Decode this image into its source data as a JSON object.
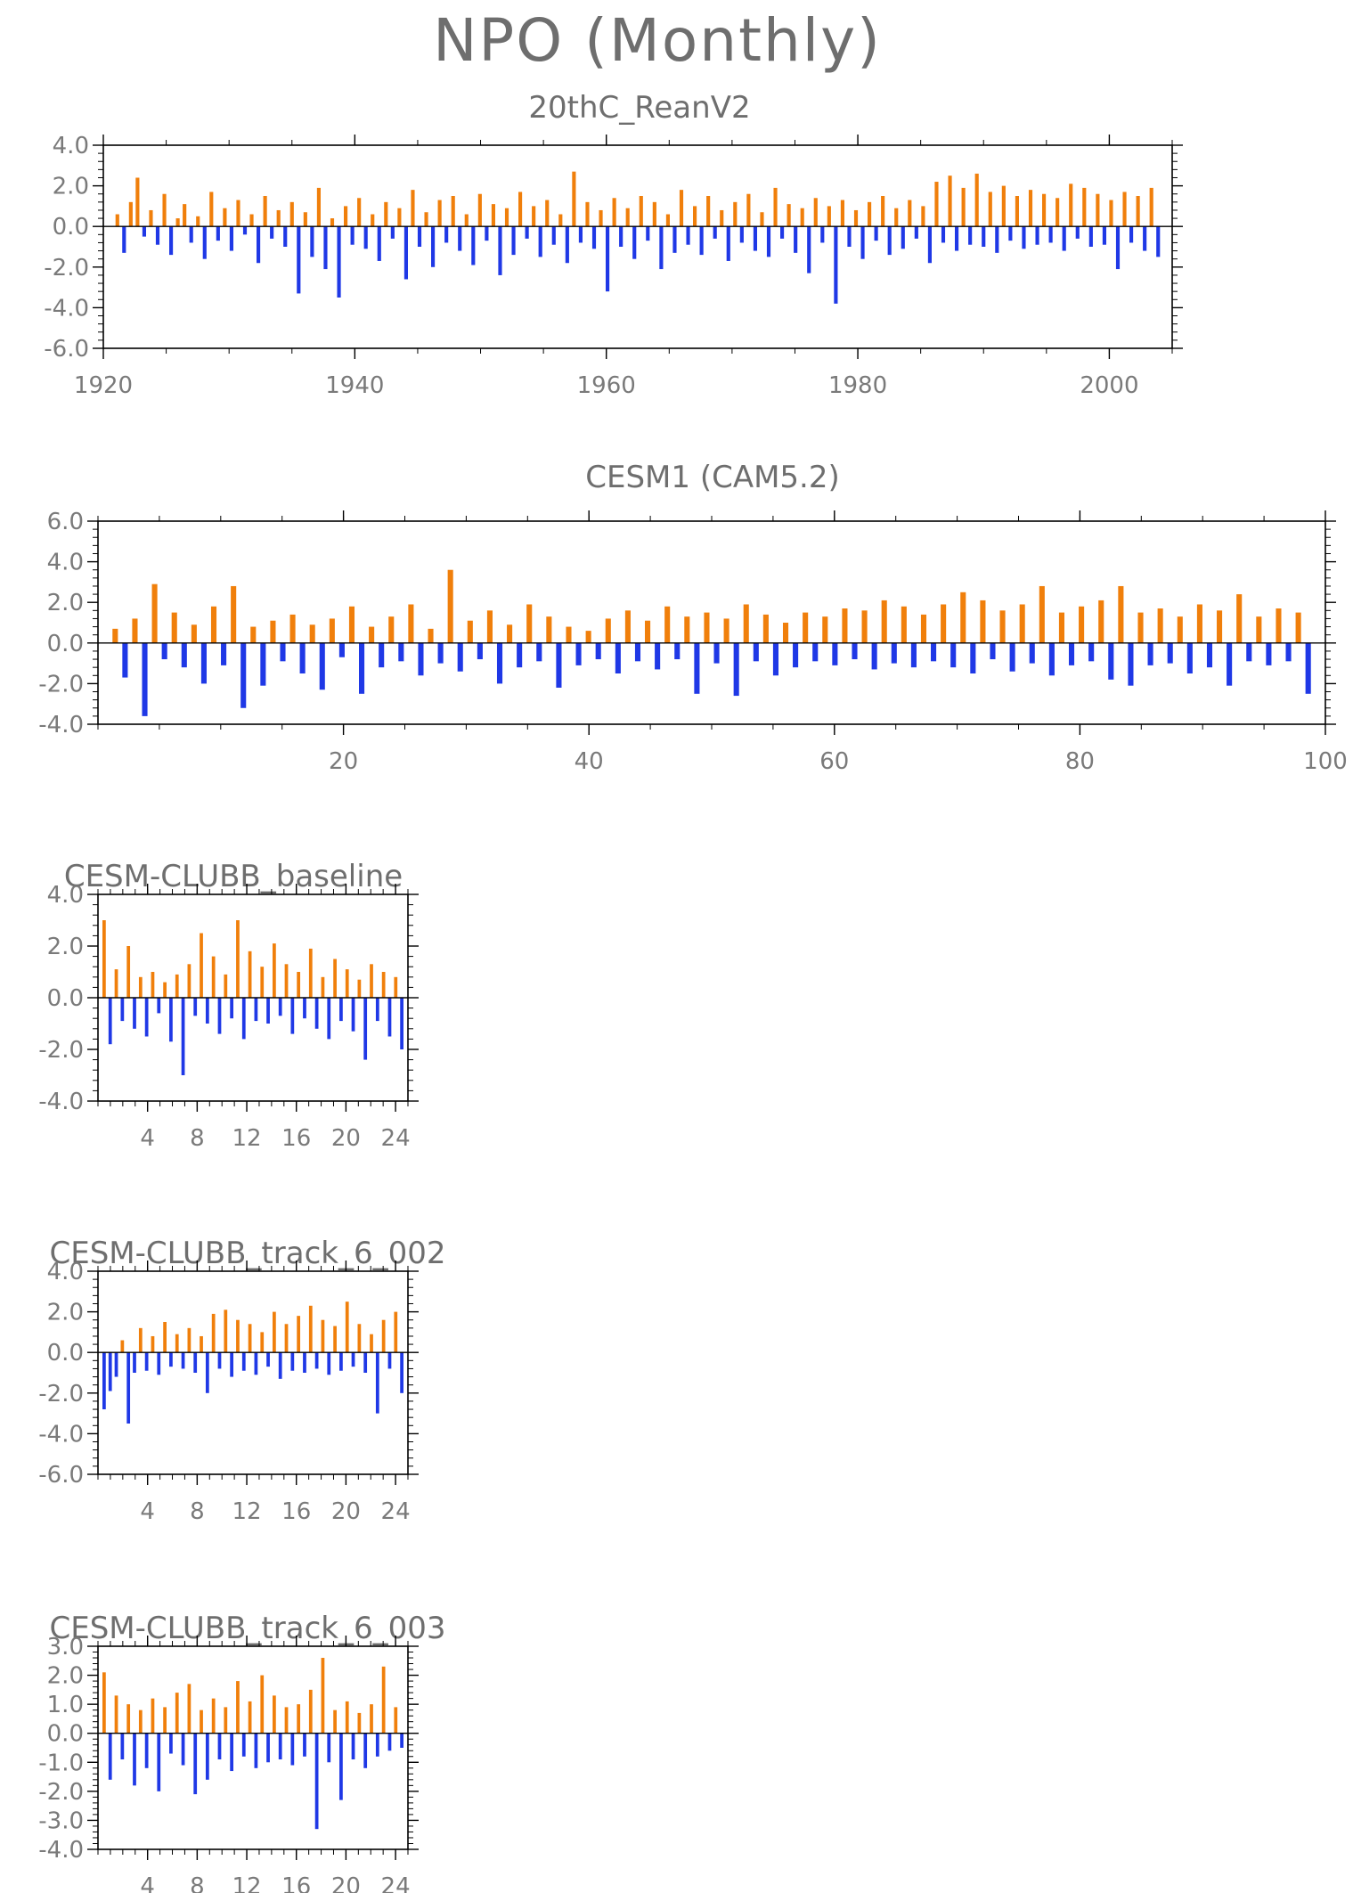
{
  "figure": {
    "title": "NPO (Monthly)"
  },
  "colors": {
    "positive": "#f07f0b",
    "negative": "#1f38e6",
    "spike": "#c8c8c8",
    "axis": "#000000",
    "title": "#6e6e6e",
    "tick_label": "#7a7a7a"
  },
  "chart_data": [
    {
      "type": "bar",
      "title": "20thC_ReanV2",
      "xlabel": "",
      "ylabel": "",
      "xlim": [
        1920,
        2005
      ],
      "ylim": [
        -6.0,
        4.0
      ],
      "xticks": [
        1920,
        1940,
        1960,
        1980,
        2000
      ],
      "xtick_labels": [
        "1920",
        "1940",
        "1960",
        "1980",
        "2000"
      ],
      "yticks": [
        -6.0,
        -4.0,
        -2.0,
        0.0,
        2.0,
        4.0
      ],
      "ytick_labels": [
        "-6.0",
        "-4.0",
        "-2.0",
        "0.0",
        "2.0",
        "4.0"
      ],
      "positive_color": "#f07f0b",
      "negative_color": "#1f38e6",
      "series": [
        {
          "values": [
            0.6,
            -1.3,
            1.2,
            2.4,
            -0.5,
            0.8,
            -0.9,
            1.6,
            -1.4,
            0.4,
            1.1,
            -0.8,
            0.5,
            -1.6,
            1.7,
            -0.7,
            0.9,
            -1.2,
            1.3,
            -0.4,
            0.6,
            -1.8,
            1.5,
            -0.6,
            0.8,
            -1.0,
            1.2,
            -3.3,
            0.7,
            -1.5,
            1.9,
            -2.1,
            0.4,
            -3.5,
            1.0,
            -0.9,
            1.4,
            -1.1,
            0.6,
            -1.7,
            1.2,
            -0.6,
            0.9,
            -2.6,
            1.8,
            -1.0,
            0.7,
            -2.0,
            1.3,
            -0.8,
            1.5,
            -1.2,
            0.6,
            -1.9,
            1.6,
            -0.7,
            1.1,
            -2.4,
            0.9,
            -1.4,
            1.7,
            -0.6,
            1.0,
            -1.5,
            1.3,
            -0.9,
            0.6,
            -1.8,
            2.7,
            -0.8,
            1.2,
            -1.1,
            0.8,
            -3.2,
            1.4,
            -1.0,
            0.9,
            -1.6,
            1.5,
            -0.7,
            1.2,
            -2.1,
            0.6,
            -1.3,
            1.8,
            -0.9,
            1.0,
            -1.4,
            1.5,
            -0.6,
            0.8,
            -1.7,
            1.2,
            -0.8,
            1.6,
            -1.2,
            0.7,
            -1.5,
            1.9,
            -0.6,
            1.1,
            -1.3,
            0.9,
            -2.3,
            1.4,
            -0.8,
            1.0,
            -3.8,
            1.3,
            -1.0,
            0.8,
            -1.6,
            1.2,
            -0.7,
            1.5,
            -1.4,
            0.9,
            -1.1,
            1.3,
            -0.6,
            1.0,
            -1.8,
            2.2,
            -0.8,
            2.5,
            -1.2,
            1.9,
            -0.9,
            2.6,
            -1.0,
            1.7,
            -1.3,
            2.0,
            -0.7,
            1.5,
            -1.1,
            1.8,
            -0.9,
            1.6,
            -0.8,
            1.4,
            -1.2,
            2.1,
            -0.6,
            1.9,
            -1.0,
            1.6,
            -0.9,
            1.3,
            -2.1,
            1.7,
            -0.8,
            1.5,
            -1.2,
            1.9,
            -1.5
          ]
        }
      ]
    },
    {
      "type": "bar",
      "title": "CESM1 (CAM5.2)",
      "xlabel": "",
      "ylabel": "",
      "xlim": [
        0,
        100
      ],
      "ylim": [
        -4.0,
        6.0
      ],
      "xticks": [
        20,
        40,
        60,
        80,
        100
      ],
      "xtick_labels": [
        "20",
        "40",
        "60",
        "80",
        "100"
      ],
      "yticks": [
        -4.0,
        -2.0,
        0.0,
        2.0,
        4.0,
        6.0
      ],
      "ytick_labels": [
        "-4.0",
        "-2.0",
        "0.0",
        "2.0",
        "4.0",
        "6.0"
      ],
      "positive_color": "#f07f0b",
      "negative_color": "#1f38e6",
      "series": [
        {
          "values": [
            0.7,
            -1.7,
            1.2,
            -3.6,
            2.9,
            -0.8,
            1.5,
            -1.2,
            0.9,
            -2.0,
            1.8,
            -1.1,
            2.8,
            -3.2,
            0.8,
            -2.1,
            1.1,
            -0.9,
            1.4,
            -1.5,
            0.9,
            -2.3,
            1.2,
            -0.7,
            1.8,
            -2.5,
            0.8,
            -1.2,
            1.3,
            -0.9,
            1.9,
            -1.6,
            0.7,
            -1.0,
            3.6,
            -1.4,
            1.1,
            -0.8,
            1.6,
            -2.0,
            0.9,
            -1.2,
            1.9,
            -0.9,
            1.3,
            -2.2,
            0.8,
            -1.1,
            0.6,
            -0.8,
            1.2,
            -1.5,
            1.6,
            -0.9,
            1.1,
            -1.3,
            1.8,
            -0.8,
            1.3,
            -2.5,
            1.5,
            -1.0,
            1.2,
            -2.6,
            1.9,
            -0.9,
            1.4,
            -1.6,
            1.0,
            -1.2,
            1.5,
            -0.9,
            1.3,
            -1.1,
            1.7,
            -0.8,
            1.6,
            -1.3,
            2.1,
            -1.0,
            1.8,
            -1.2,
            1.4,
            -0.9,
            1.9,
            -1.2,
            2.5,
            -1.5,
            2.1,
            -0.8,
            1.6,
            -1.4,
            1.9,
            -1.0,
            2.8,
            -1.6,
            1.5,
            -1.1,
            1.8,
            -0.9,
            2.1,
            -1.8,
            2.8,
            -2.1,
            1.5,
            -1.1,
            1.7,
            -1.0,
            1.3,
            -1.5,
            1.9,
            -1.2,
            1.6,
            -2.1,
            2.4,
            -0.9,
            1.3,
            -1.1,
            1.7,
            -0.9,
            1.5,
            -2.5
          ]
        }
      ]
    },
    {
      "type": "bar",
      "title": "CESM-CLUBB_baseline",
      "xlabel": "",
      "ylabel": "",
      "xlim": [
        0,
        25
      ],
      "ylim": [
        -4.0,
        4.0
      ],
      "xticks": [
        4,
        8,
        12,
        16,
        20,
        24
      ],
      "xtick_labels": [
        "4",
        "8",
        "12",
        "16",
        "20",
        "24"
      ],
      "yticks": [
        -4.0,
        -2.0,
        0.0,
        2.0,
        4.0
      ],
      "ytick_labels": [
        "-4.0",
        "-2.0",
        "0.0",
        "2.0",
        "4.0"
      ],
      "positive_color": "#f07f0b",
      "negative_color": "#1f38e6",
      "series": [
        {
          "values": [
            3.0,
            -1.8,
            1.1,
            -0.9,
            2.0,
            -1.2,
            0.8,
            -1.5,
            1.0,
            -0.6,
            0.6,
            -1.7,
            0.9,
            -3.0,
            1.3,
            -0.7,
            2.5,
            -1.0,
            1.6,
            -1.4,
            0.9,
            -0.8,
            3.0,
            -1.6,
            1.8,
            -0.9,
            1.2,
            -1.0,
            2.1,
            -0.7,
            1.3,
            -1.4,
            1.0,
            -0.8,
            1.9,
            -1.2,
            0.8,
            -1.6,
            1.5,
            -0.9,
            1.1,
            -1.3,
            0.7,
            -2.4,
            1.3,
            -0.9,
            1.0,
            -1.5,
            0.8,
            -2.0
          ]
        }
      ]
    },
    {
      "type": "bar",
      "title": "CESM-CLUBB_track_6_002",
      "xlabel": "",
      "ylabel": "",
      "xlim": [
        0,
        25
      ],
      "ylim": [
        -6.0,
        4.0
      ],
      "xticks": [
        4,
        8,
        12,
        16,
        20,
        24
      ],
      "xtick_labels": [
        "4",
        "8",
        "12",
        "16",
        "20",
        "24"
      ],
      "yticks": [
        -6.0,
        -4.0,
        -2.0,
        0.0,
        2.0,
        4.0
      ],
      "ytick_labels": [
        "-6.0",
        "-4.0",
        "-2.0",
        "0.0",
        "2.0",
        "4.0"
      ],
      "positive_color": "#f07f0b",
      "negative_color": "#1f38e6",
      "series": [
        {
          "values": [
            -2.8,
            -1.9,
            -1.2,
            0.6,
            -3.5,
            -1.0,
            1.2,
            -0.9,
            0.8,
            -1.1,
            1.5,
            -0.7,
            0.9,
            -0.8,
            1.2,
            -1.0,
            0.8,
            -2.0,
            1.9,
            -0.8,
            2.1,
            -1.2,
            1.6,
            -0.9,
            1.4,
            -1.1,
            1.0,
            -0.7,
            2.0,
            -1.3,
            1.4,
            -0.9,
            1.8,
            -1.0,
            2.3,
            -0.8,
            1.6,
            -1.1,
            1.3,
            -0.9,
            2.5,
            -0.7,
            1.4,
            -1.0,
            0.9,
            -3.0,
            1.6,
            -0.8,
            2.0,
            -2.0
          ]
        }
      ]
    },
    {
      "type": "bar",
      "title": "CESM-CLUBB_track_6_003",
      "xlabel": "",
      "ylabel": "",
      "xlim": [
        0,
        25
      ],
      "ylim": [
        -4.0,
        3.0
      ],
      "xticks": [
        4,
        8,
        12,
        16,
        20,
        24
      ],
      "xtick_labels": [
        "4",
        "8",
        "12",
        "16",
        "20",
        "24"
      ],
      "yticks": [
        -4.0,
        -3.0,
        -2.0,
        -1.0,
        0.0,
        1.0,
        2.0,
        3.0
      ],
      "ytick_labels": [
        "-4.0",
        "-3.0",
        "-2.0",
        "-1.0",
        "0.0",
        "1.0",
        "2.0",
        "3.0"
      ],
      "positive_color": "#f07f0b",
      "negative_color": "#1f38e6",
      "series": [
        {
          "values": [
            2.1,
            -1.6,
            1.3,
            -0.9,
            1.0,
            -1.8,
            0.8,
            -1.2,
            1.2,
            -2.0,
            0.9,
            -0.7,
            1.4,
            -1.1,
            1.7,
            -2.1,
            0.8,
            -1.6,
            1.2,
            -0.9,
            0.9,
            -1.3,
            1.8,
            -0.8,
            1.1,
            -1.2,
            2.0,
            -1.0,
            1.3,
            -0.9,
            0.9,
            -1.1,
            1.0,
            -0.8,
            1.5,
            -3.3,
            2.6,
            -1.0,
            0.8,
            -2.3,
            1.1,
            -0.9,
            0.7,
            -1.2,
            1.0,
            -0.8,
            2.3,
            -0.6,
            0.9,
            -0.5
          ]
        }
      ]
    }
  ]
}
